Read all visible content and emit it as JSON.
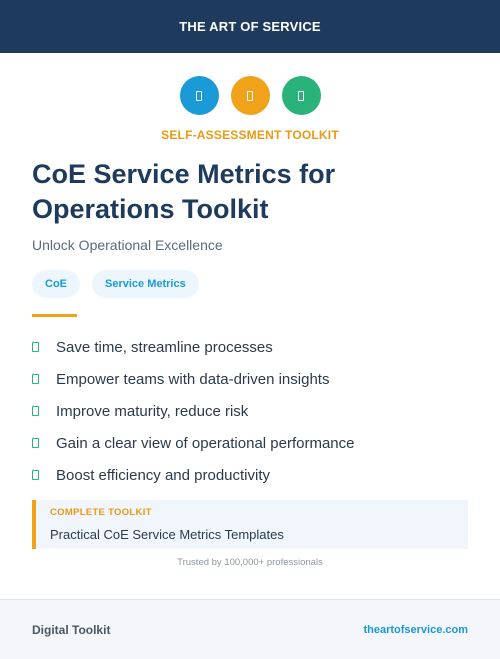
{
  "header": {
    "brand": "THE ART OF SERVICE"
  },
  "icons": [
    {
      "name": "document-icon",
      "color": "#1a9ad6"
    },
    {
      "name": "document-icon",
      "color": "#f0a21a"
    },
    {
      "name": "document-icon",
      "color": "#2ab27b"
    }
  ],
  "eyebrow": "SELF-ASSESSMENT TOOLKIT",
  "title": "CoE Service Metrics for Operations Toolkit",
  "subtitle": "Unlock Operational Excellence",
  "tags": [
    "CoE",
    "Service Metrics"
  ],
  "benefits": [
    "Save time, streamline processes",
    "Empower teams with data-driven insights",
    "Improve maturity, reduce risk",
    "Gain a clear view of operational performance",
    "Boost efficiency and productivity"
  ],
  "callout": {
    "label": "COMPLETE TOOLKIT",
    "value": "Practical CoE Service Metrics Templates"
  },
  "trusted": "Trusted by 100,000+ professionals",
  "footer": {
    "left": "Digital Toolkit",
    "right": "theartofservice.com"
  },
  "colors": {
    "navy": "#1e3a5c",
    "orange": "#f0a21a",
    "blue": "#1a9ad6",
    "green": "#2ab27b"
  }
}
